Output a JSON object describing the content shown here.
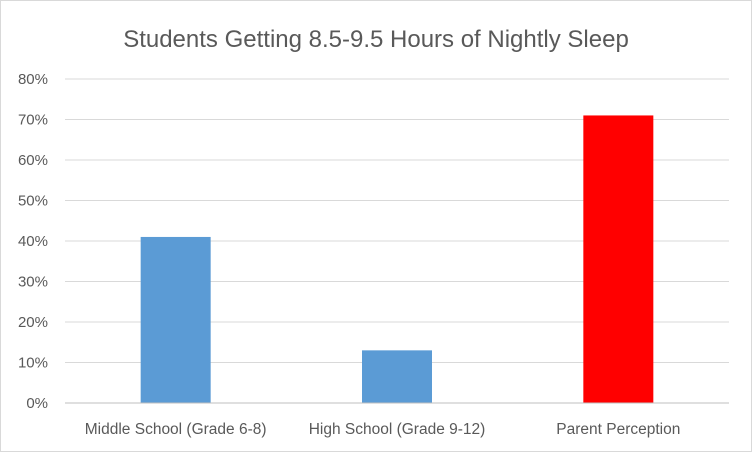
{
  "chart_data": {
    "type": "bar",
    "title": "Students Getting 8.5-9.5 Hours of Nightly Sleep",
    "categories": [
      "Middle School (Grade 6-8)",
      "High School (Grade 9-12)",
      "Parent Perception"
    ],
    "values": [
      0.41,
      0.13,
      0.71
    ],
    "bar_colors": [
      "#5b9bd5",
      "#5b9bd5",
      "#ff0000"
    ],
    "ylim": [
      0,
      0.8
    ],
    "yticks": [
      0,
      0.1,
      0.2,
      0.3,
      0.4,
      0.5,
      0.6,
      0.7,
      0.8
    ],
    "ytick_labels": [
      "0%",
      "10%",
      "20%",
      "30%",
      "40%",
      "50%",
      "60%",
      "70%",
      "80%"
    ],
    "grid": true,
    "legend": "none"
  }
}
